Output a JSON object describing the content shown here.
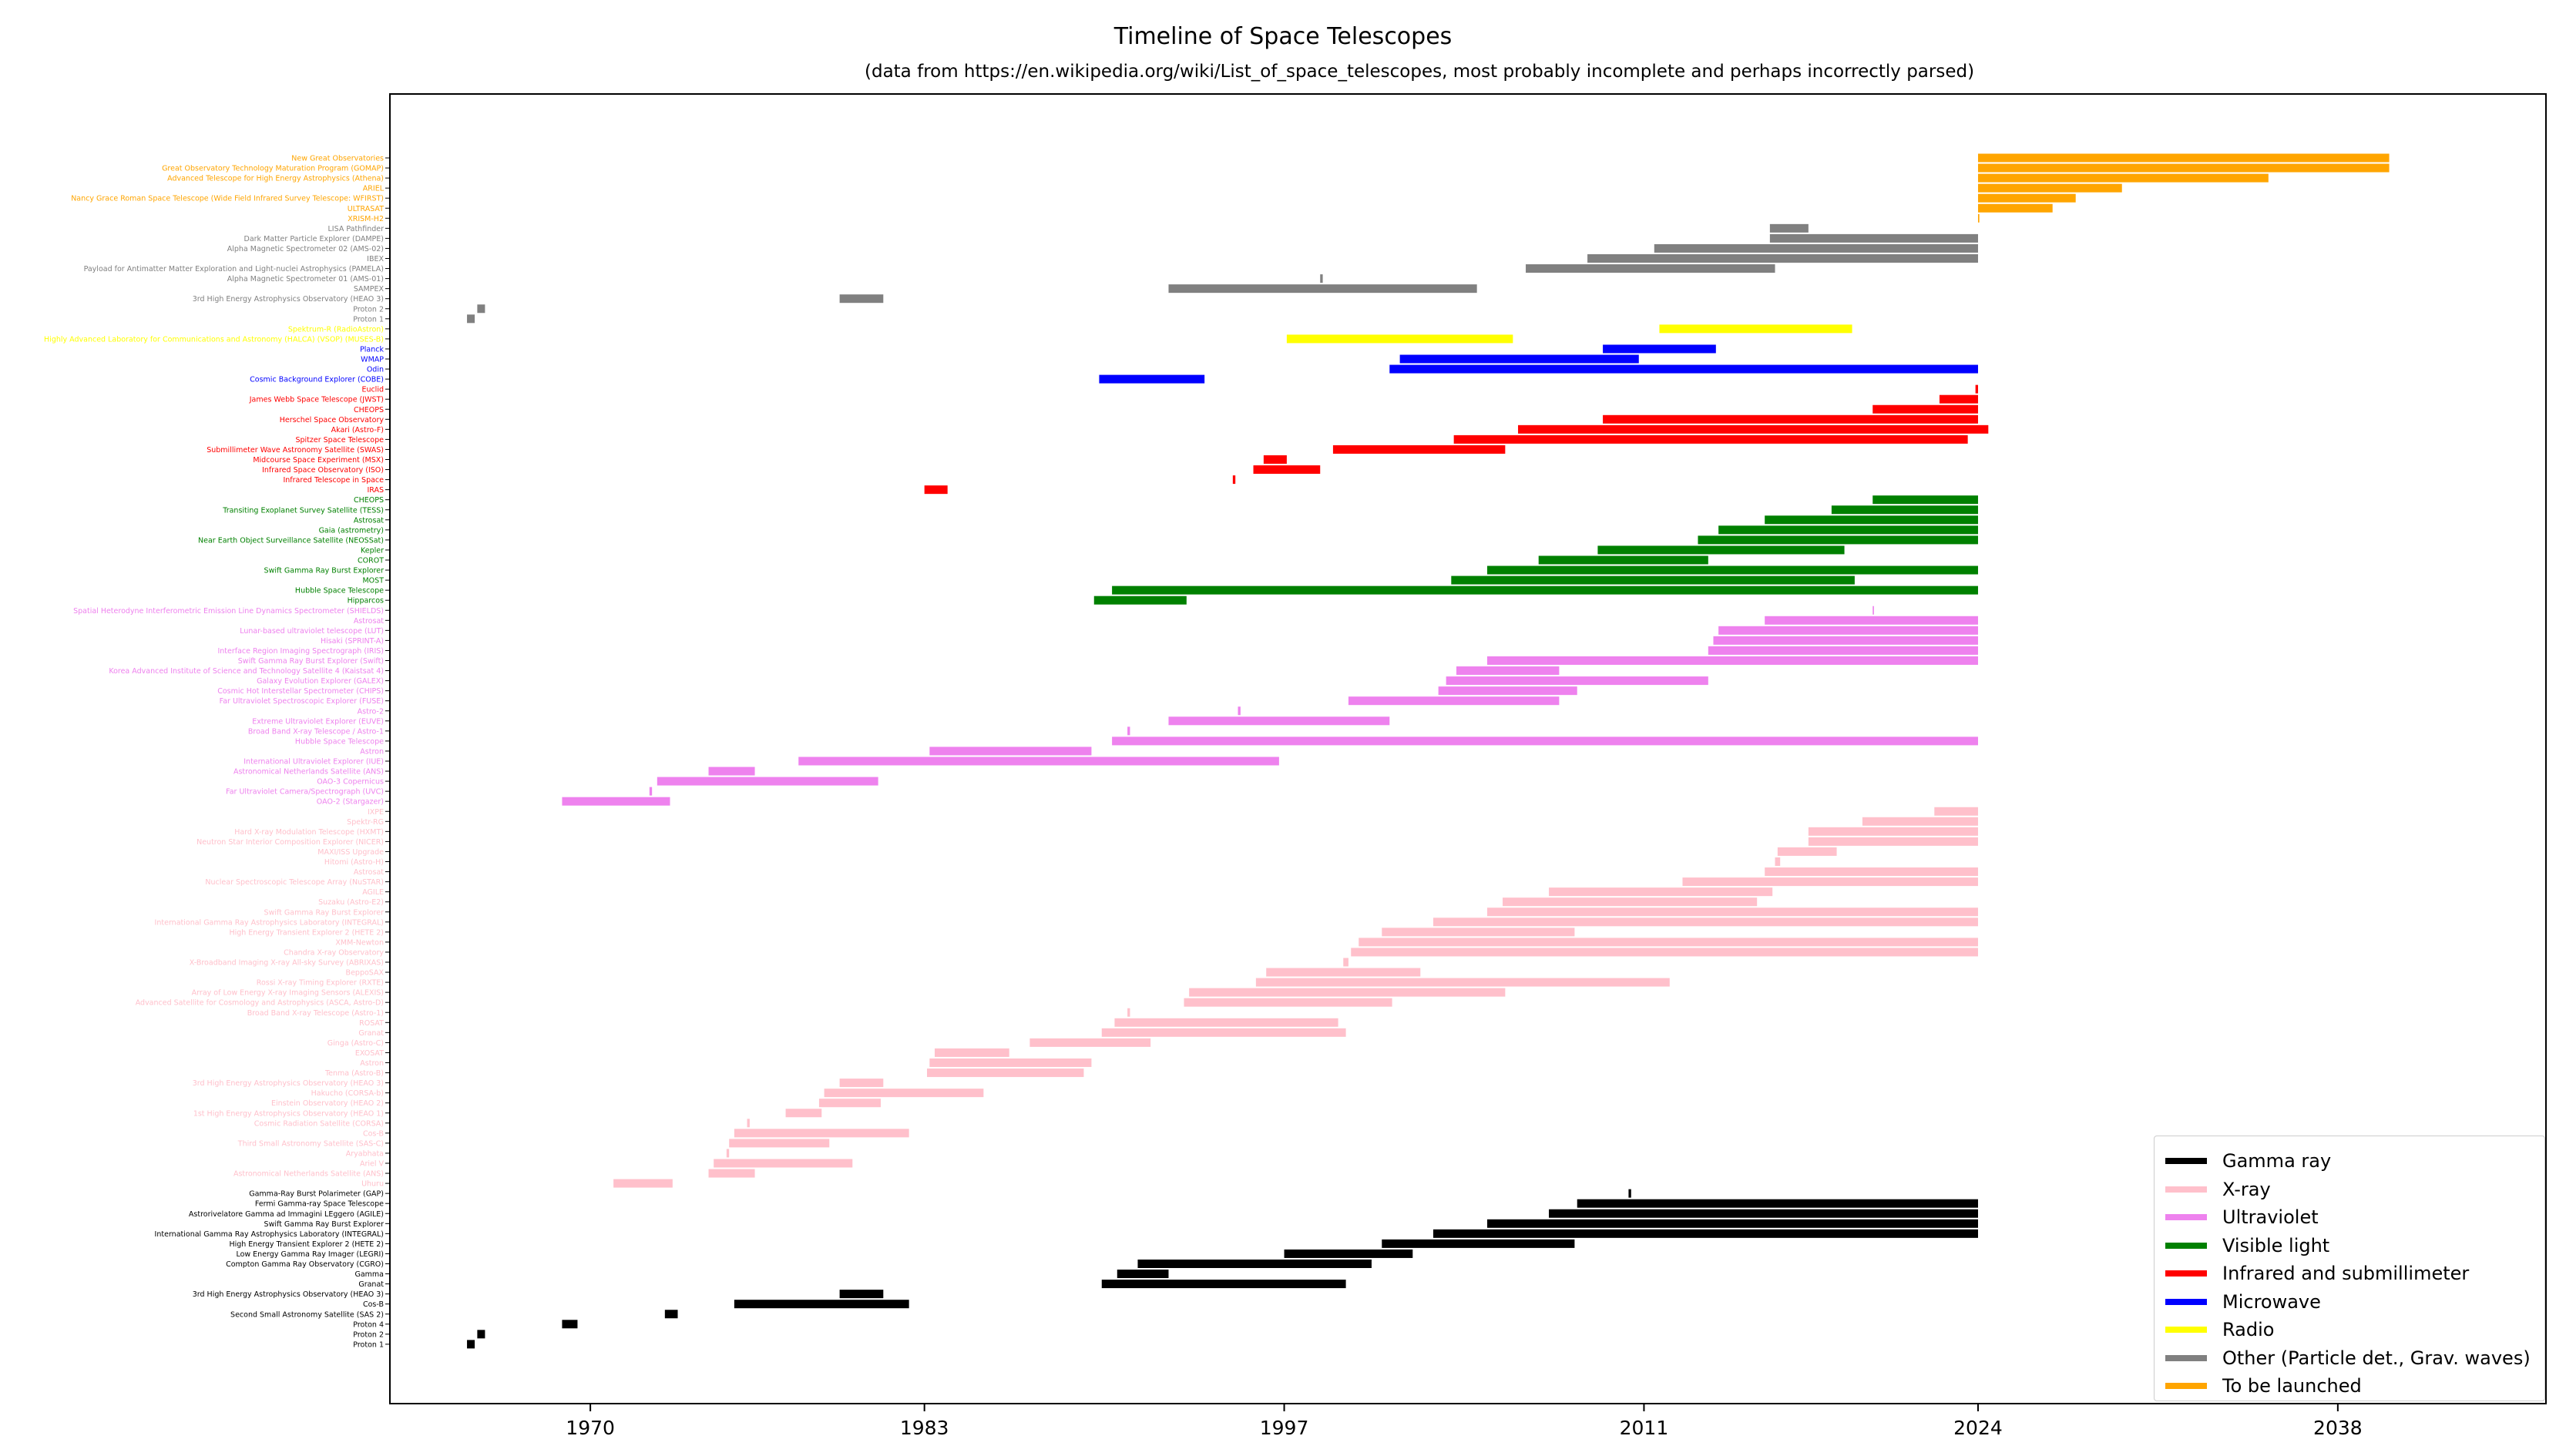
{
  "title": "Timeline of Space Telescopes",
  "subtitle": "(data from https://en.wikipedia.org/wiki/List_of_space_telescopes, most probably incomplete and perhaps incorrectly parsed)",
  "colors": {
    "gamma": "#000000",
    "xray": "#ffc0cb",
    "uv": "#ee82ee",
    "visible": "#008000",
    "infrared": "#ff0000",
    "microwave": "#0000ff",
    "radio": "#ffff00",
    "other": "#808080",
    "tolaunch": "#ffa500"
  },
  "chart_data": {
    "type": "bar",
    "orientation": "horizontal",
    "title": "Timeline of Space Telescopes",
    "xlabel": "",
    "ylabel": "",
    "xlim": [
      1962.2,
      2046.1
    ],
    "x_ticks": [
      1970,
      1983,
      1997,
      2011,
      2024,
      2038
    ],
    "grid": false,
    "legend_position": "lower-right",
    "legend": [
      {
        "name": "Gamma ray",
        "key": "gamma"
      },
      {
        "name": "X-ray",
        "key": "xray"
      },
      {
        "name": "Ultraviolet",
        "key": "uv"
      },
      {
        "name": "Visible light",
        "key": "visible"
      },
      {
        "name": "Infrared and submillimeter",
        "key": "infrared"
      },
      {
        "name": "Microwave",
        "key": "microwave"
      },
      {
        "name": "Radio",
        "key": "radio"
      },
      {
        "name": "Other (Particle det., Grav. waves)",
        "key": "other"
      },
      {
        "name": "To be launched",
        "key": "tolaunch"
      }
    ],
    "categories": [
      {
        "label": "New Great Observatories",
        "cat": "tolaunch",
        "start": 2024.0,
        "end": 2040.0
      },
      {
        "label": "Great Observatory Technology Maturation Program (GOMAP)",
        "cat": "tolaunch",
        "start": 2024.0,
        "end": 2040.0
      },
      {
        "label": "Advanced Telescope for High Energy Astrophysics (Athena)",
        "cat": "tolaunch",
        "start": 2024.0,
        "end": 2035.3
      },
      {
        "label": "ARIEL",
        "cat": "tolaunch",
        "start": 2024.0,
        "end": 2029.6
      },
      {
        "label": "Nancy Grace Roman Space Telescope (Wide Field Infrared Survey Telescope: WFIRST)",
        "cat": "tolaunch",
        "start": 2024.0,
        "end": 2027.8
      },
      {
        "label": "ULTRASAT",
        "cat": "tolaunch",
        "start": 2024.0,
        "end": 2026.9
      },
      {
        "label": "XRISM-H2",
        "cat": "tolaunch",
        "start": 2024.0,
        "end": 2024.05
      },
      {
        "label": "LISA Pathfinder",
        "cat": "other",
        "start": 2015.9,
        "end": 2017.4
      },
      {
        "label": "Dark Matter Particle Explorer (DAMPE)",
        "cat": "other",
        "start": 2015.9,
        "end": 2024.0
      },
      {
        "label": "Alpha Magnetic Spectrometer 02 (AMS-02)",
        "cat": "other",
        "start": 2011.4,
        "end": 2024.0
      },
      {
        "label": "IBEX",
        "cat": "other",
        "start": 2008.8,
        "end": 2024.0
      },
      {
        "label": "Payload for Antimatter Matter Exploration and Light-nuclei Astrophysics (PAMELA)",
        "cat": "other",
        "start": 2006.4,
        "end": 2016.1
      },
      {
        "label": "Alpha Magnetic Spectrometer 01 (AMS-01)",
        "cat": "other",
        "start": 1998.4,
        "end": 1998.5
      },
      {
        "label": "SAMPEX",
        "cat": "other",
        "start": 1992.5,
        "end": 2004.5
      },
      {
        "label": "3rd High Energy Astrophysics Observatory (HEAO 3)",
        "cat": "other",
        "start": 1979.7,
        "end": 1981.4
      },
      {
        "label": "Proton 2",
        "cat": "other",
        "start": 1965.6,
        "end": 1965.9
      },
      {
        "label": "Proton 1",
        "cat": "other",
        "start": 1965.2,
        "end": 1965.5
      },
      {
        "label": "Spektrum-R (RadioAstron)",
        "cat": "radio",
        "start": 2011.6,
        "end": 2019.1
      },
      {
        "label": "Highly Advanced Laboratory for Communications and Astronomy (HALCA) (VSOP) (MUSES-B)",
        "cat": "radio",
        "start": 1997.1,
        "end": 2005.9
      },
      {
        "label": "Planck",
        "cat": "microwave",
        "start": 2009.4,
        "end": 2013.8
      },
      {
        "label": "WMAP",
        "cat": "microwave",
        "start": 2001.5,
        "end": 2010.8
      },
      {
        "label": "Odin",
        "cat": "microwave",
        "start": 2001.1,
        "end": 2024.0
      },
      {
        "label": "Cosmic Background Explorer (COBE)",
        "cat": "microwave",
        "start": 1989.8,
        "end": 1993.9
      },
      {
        "label": "Euclid",
        "cat": "infrared",
        "start": 2023.9,
        "end": 2024.0
      },
      {
        "label": "James Webb Space Telescope (JWST)",
        "cat": "infrared",
        "start": 2022.5,
        "end": 2024.0
      },
      {
        "label": "CHEOPS",
        "cat": "infrared",
        "start": 2019.9,
        "end": 2024.0
      },
      {
        "label": "Herschel Space Observatory",
        "cat": "infrared",
        "start": 2009.4,
        "end": 2024.0
      },
      {
        "label": "Akari (Astro-F)",
        "cat": "infrared",
        "start": 2006.1,
        "end": 2024.4
      },
      {
        "label": "Spitzer Space Telescope",
        "cat": "infrared",
        "start": 2003.6,
        "end": 2023.6
      },
      {
        "label": "Submillimeter Wave Astronomy Satellite (SWAS)",
        "cat": "infrared",
        "start": 1998.9,
        "end": 2005.6
      },
      {
        "label": "Midcourse Space Experiment (MSX)",
        "cat": "infrared",
        "start": 1996.2,
        "end": 1997.1
      },
      {
        "label": "Infrared Space Observatory (ISO)",
        "cat": "infrared",
        "start": 1995.8,
        "end": 1998.4
      },
      {
        "label": "Infrared Telescope in Space",
        "cat": "infrared",
        "start": 1995.0,
        "end": 1995.1
      },
      {
        "label": "IRAS",
        "cat": "infrared",
        "start": 1983.0,
        "end": 1983.9
      },
      {
        "label": "CHEOPS",
        "cat": "visible",
        "start": 2019.9,
        "end": 2024.0
      },
      {
        "label": "Transiting Exoplanet Survey Satellite (TESS)",
        "cat": "visible",
        "start": 2018.3,
        "end": 2024.0
      },
      {
        "label": "Astrosat",
        "cat": "visible",
        "start": 2015.7,
        "end": 2024.0
      },
      {
        "label": "Gaia (astrometry)",
        "cat": "visible",
        "start": 2013.9,
        "end": 2024.0
      },
      {
        "label": "Near Earth Object Surveillance Satellite (NEOSSat)",
        "cat": "visible",
        "start": 2013.1,
        "end": 2024.0
      },
      {
        "label": "Kepler",
        "cat": "visible",
        "start": 2009.2,
        "end": 2018.8
      },
      {
        "label": "COROT",
        "cat": "visible",
        "start": 2006.9,
        "end": 2013.5
      },
      {
        "label": "Swift Gamma Ray Burst Explorer",
        "cat": "visible",
        "start": 2004.9,
        "end": 2024.0
      },
      {
        "label": "MOST",
        "cat": "visible",
        "start": 2003.5,
        "end": 2019.2
      },
      {
        "label": "Hubble Space Telescope",
        "cat": "visible",
        "start": 1990.3,
        "end": 2024.0
      },
      {
        "label": "Hipparcos",
        "cat": "visible",
        "start": 1989.6,
        "end": 1993.2
      },
      {
        "label": "Spatial Heterodyne Interferometric Emission Line Dynamics Spectrometer (SHIELDS)",
        "cat": "uv",
        "start": 2019.9,
        "end": 2019.95
      },
      {
        "label": "Astrosat",
        "cat": "uv",
        "start": 2015.7,
        "end": 2024.0
      },
      {
        "label": "Lunar-based ultraviolet telescope (LUT)",
        "cat": "uv",
        "start": 2013.9,
        "end": 2024.0
      },
      {
        "label": "Hisaki (SPRINT-A)",
        "cat": "uv",
        "start": 2013.7,
        "end": 2024.0
      },
      {
        "label": "Interface Region Imaging Spectrograph (IRIS)",
        "cat": "uv",
        "start": 2013.5,
        "end": 2024.0
      },
      {
        "label": "Swift Gamma Ray Burst Explorer (Swift)",
        "cat": "uv",
        "start": 2004.9,
        "end": 2024.0
      },
      {
        "label": "Korea Advanced Institute of Science and Technology Satellite 4 (Kaistsat 4)",
        "cat": "uv",
        "start": 2003.7,
        "end": 2007.7
      },
      {
        "label": "Galaxy Evolution Explorer (GALEX)",
        "cat": "uv",
        "start": 2003.3,
        "end": 2013.5
      },
      {
        "label": "Cosmic Hot Interstellar Spectrometer (CHIPS)",
        "cat": "uv",
        "start": 2003.0,
        "end": 2008.4
      },
      {
        "label": "Far Ultraviolet Spectroscopic Explorer (FUSE)",
        "cat": "uv",
        "start": 1999.5,
        "end": 2007.7
      },
      {
        "label": "Astro-2",
        "cat": "uv",
        "start": 1995.2,
        "end": 1995.3
      },
      {
        "label": "Extreme Ultraviolet Explorer (EUVE)",
        "cat": "uv",
        "start": 1992.5,
        "end": 2001.1
      },
      {
        "label": "Broad Band X-ray Telescope / Astro-1",
        "cat": "uv",
        "start": 1990.9,
        "end": 1991.0
      },
      {
        "label": "Hubble Space Telescope",
        "cat": "uv",
        "start": 1990.3,
        "end": 2024.0
      },
      {
        "label": "Astron",
        "cat": "uv",
        "start": 1983.2,
        "end": 1989.5
      },
      {
        "label": "International Ultraviolet Explorer (IUE)",
        "cat": "uv",
        "start": 1978.1,
        "end": 1996.8
      },
      {
        "label": "Astronomical Netherlands Satellite (ANS)",
        "cat": "uv",
        "start": 1974.6,
        "end": 1976.4
      },
      {
        "label": "OAO-3 Copernicus",
        "cat": "uv",
        "start": 1972.6,
        "end": 1981.2
      },
      {
        "label": "Far Ultraviolet Camera/Spectrograph (UVC)",
        "cat": "uv",
        "start": 1972.3,
        "end": 1972.4
      },
      {
        "label": "OAO-2 (Stargazer)",
        "cat": "uv",
        "start": 1968.9,
        "end": 1973.1
      },
      {
        "label": "IXPE",
        "cat": "xray",
        "start": 2022.3,
        "end": 2024.0
      },
      {
        "label": "Spektr-RG",
        "cat": "xray",
        "start": 2019.5,
        "end": 2024.0
      },
      {
        "label": "Hard X-ray Modulation Telescope (HXMT)",
        "cat": "xray",
        "start": 2017.4,
        "end": 2024.0
      },
      {
        "label": "Neutron Star Interior Composition Explorer (NICER)",
        "cat": "xray",
        "start": 2017.4,
        "end": 2024.0
      },
      {
        "label": "MAXI/ISS Upgrade",
        "cat": "xray",
        "start": 2016.2,
        "end": 2018.5
      },
      {
        "label": "Hitomi (Astro-H)",
        "cat": "xray",
        "start": 2016.1,
        "end": 2016.3
      },
      {
        "label": "Astrosat",
        "cat": "xray",
        "start": 2015.7,
        "end": 2024.0
      },
      {
        "label": "Nuclear Spectroscopic Telescope Array (NuSTAR)",
        "cat": "xray",
        "start": 2012.5,
        "end": 2024.0
      },
      {
        "label": "AGILE",
        "cat": "xray",
        "start": 2007.3,
        "end": 2016.0
      },
      {
        "label": "Suzaku (Astro-E2)",
        "cat": "xray",
        "start": 2005.5,
        "end": 2015.4
      },
      {
        "label": "Swift Gamma Ray Burst Explorer",
        "cat": "xray",
        "start": 2004.9,
        "end": 2024.0
      },
      {
        "label": "International Gamma Ray Astrophysics Laboratory (INTEGRAL)",
        "cat": "xray",
        "start": 2002.8,
        "end": 2024.0
      },
      {
        "label": "High Energy Transient Explorer 2 (HETE 2)",
        "cat": "xray",
        "start": 2000.8,
        "end": 2008.3
      },
      {
        "label": "XMM-Newton",
        "cat": "xray",
        "start": 1999.9,
        "end": 2024.0
      },
      {
        "label": "Chandra X-ray Observatory",
        "cat": "xray",
        "start": 1999.6,
        "end": 2024.0
      },
      {
        "label": "X-Broadband Imaging X-ray All-sky Survey (ABRIXAS)",
        "cat": "xray",
        "start": 1999.3,
        "end": 1999.5
      },
      {
        "label": "BeppoSAX",
        "cat": "xray",
        "start": 1996.3,
        "end": 2002.3
      },
      {
        "label": "Rossi X-ray Timing Explorer (RXTE)",
        "cat": "xray",
        "start": 1995.9,
        "end": 2012.0
      },
      {
        "label": "Array of Low Energy X-ray Imaging Sensors (ALEXIS)",
        "cat": "xray",
        "start": 1993.3,
        "end": 2005.6
      },
      {
        "label": "Advanced Satellite for Cosmology and Astrophysics (ASCA, Astro-D)",
        "cat": "xray",
        "start": 1993.1,
        "end": 2001.2
      },
      {
        "label": "Broad Band X-ray Telescope (Astro-1)",
        "cat": "xray",
        "start": 1990.9,
        "end": 1991.0
      },
      {
        "label": "ROSAT",
        "cat": "xray",
        "start": 1990.4,
        "end": 1999.1
      },
      {
        "label": "Granat",
        "cat": "xray",
        "start": 1989.9,
        "end": 1999.4
      },
      {
        "label": "Ginga (Astro-C)",
        "cat": "xray",
        "start": 1987.1,
        "end": 1991.8
      },
      {
        "label": "EXOSAT",
        "cat": "xray",
        "start": 1983.4,
        "end": 1986.3
      },
      {
        "label": "Astron",
        "cat": "xray",
        "start": 1983.2,
        "end": 1989.5
      },
      {
        "label": "Tenma (Astro-B)",
        "cat": "xray",
        "start": 1983.1,
        "end": 1989.2
      },
      {
        "label": "3rd High Energy Astrophysics Observatory (HEAO 3)",
        "cat": "xray",
        "start": 1979.7,
        "end": 1981.4
      },
      {
        "label": "Hakucho (CORSA-b)",
        "cat": "xray",
        "start": 1979.1,
        "end": 1985.3
      },
      {
        "label": "Einstein Observatory (HEAO 2)",
        "cat": "xray",
        "start": 1978.9,
        "end": 1981.3
      },
      {
        "label": "1st High Energy Astrophysics Observatory (HEAO 1)",
        "cat": "xray",
        "start": 1977.6,
        "end": 1979.0
      },
      {
        "label": "Cosmic Radiation Satellite (CORSA)",
        "cat": "xray",
        "start": 1976.1,
        "end": 1976.2
      },
      {
        "label": "Cos-B",
        "cat": "xray",
        "start": 1975.6,
        "end": 1982.4
      },
      {
        "label": "Third Small Astronomy Satellite (SAS-C)",
        "cat": "xray",
        "start": 1975.4,
        "end": 1979.3
      },
      {
        "label": "Aryabhata",
        "cat": "xray",
        "start": 1975.3,
        "end": 1975.4
      },
      {
        "label": "Ariel V",
        "cat": "xray",
        "start": 1974.8,
        "end": 1980.2
      },
      {
        "label": "Astronomical Netherlands Satellite (ANS)",
        "cat": "xray",
        "start": 1974.6,
        "end": 1976.4
      },
      {
        "label": "Uhuru",
        "cat": "xray",
        "start": 1970.9,
        "end": 1973.2
      },
      {
        "label": "Gamma-Ray Burst Polarimeter (GAP)",
        "cat": "gamma",
        "start": 2010.4,
        "end": 2010.5
      },
      {
        "label": "Fermi Gamma-ray Space Telescope",
        "cat": "gamma",
        "start": 2008.4,
        "end": 2024.0
      },
      {
        "label": "Astrorivelatore Gamma ad Immagini LEggero (AGILE)",
        "cat": "gamma",
        "start": 2007.3,
        "end": 2024.0
      },
      {
        "label": "Swift Gamma Ray Burst Explorer",
        "cat": "gamma",
        "start": 2004.9,
        "end": 2024.0
      },
      {
        "label": "International Gamma Ray Astrophysics Laboratory (INTEGRAL)",
        "cat": "gamma",
        "start": 2002.8,
        "end": 2024.0
      },
      {
        "label": "High Energy Transient Explorer 2 (HETE 2)",
        "cat": "gamma",
        "start": 2000.8,
        "end": 2008.3
      },
      {
        "label": "Low Energy Gamma Ray Imager (LEGRI)",
        "cat": "gamma",
        "start": 1997.0,
        "end": 2002.0
      },
      {
        "label": "Compton Gamma Ray Observatory (CGRO)",
        "cat": "gamma",
        "start": 1991.3,
        "end": 2000.4
      },
      {
        "label": "Gamma",
        "cat": "gamma",
        "start": 1990.5,
        "end": 1992.5
      },
      {
        "label": "Granat",
        "cat": "gamma",
        "start": 1989.9,
        "end": 1999.4
      },
      {
        "label": "3rd High Energy Astrophysics Observatory (HEAO 3)",
        "cat": "gamma",
        "start": 1979.7,
        "end": 1981.4
      },
      {
        "label": "Cos-B",
        "cat": "gamma",
        "start": 1975.6,
        "end": 1982.4
      },
      {
        "label": "Second Small Astronomy Satellite (SAS 2)",
        "cat": "gamma",
        "start": 1972.9,
        "end": 1973.4
      },
      {
        "label": "Proton 4",
        "cat": "gamma",
        "start": 1968.9,
        "end": 1969.5
      },
      {
        "label": "Proton 2",
        "cat": "gamma",
        "start": 1965.6,
        "end": 1965.9
      },
      {
        "label": "Proton 1",
        "cat": "gamma",
        "start": 1965.2,
        "end": 1965.5
      }
    ]
  }
}
